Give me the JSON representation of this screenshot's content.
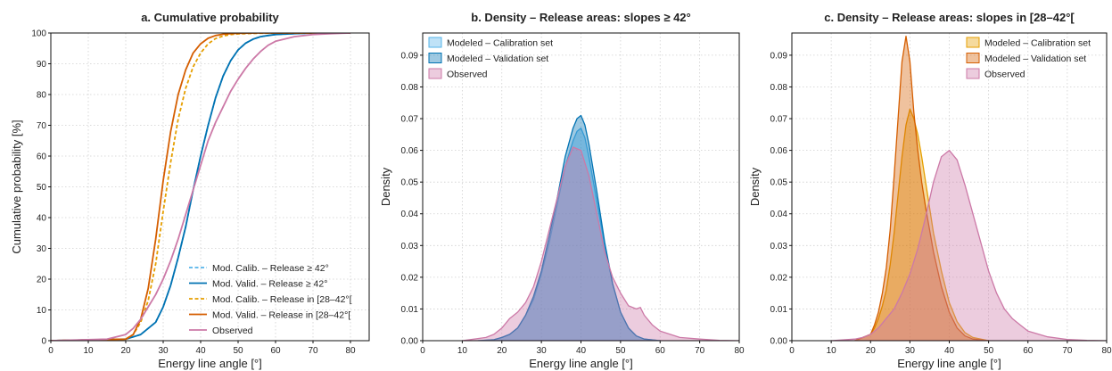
{
  "chart_data": [
    {
      "type": "line",
      "title": "a. Cumulative probability",
      "xlabel": "Energy line angle [°]",
      "ylabel": "Cumulative probability [%]",
      "xlim": [
        0,
        85
      ],
      "ylim": [
        0,
        100
      ],
      "xticks": [
        0,
        10,
        20,
        30,
        40,
        50,
        60,
        70,
        80
      ],
      "yticks": [
        0,
        10,
        20,
        30,
        40,
        50,
        60,
        70,
        80,
        90,
        100
      ],
      "grid": true,
      "legend_position": "bottom-right",
      "series": [
        {
          "name": "Mod. Calib. – Release ≥ 42°",
          "color": "#56b4e9",
          "style": "dashed",
          "x": [
            0,
            20,
            24,
            28,
            30,
            32,
            34,
            36,
            38,
            40,
            42,
            44,
            46,
            48,
            50,
            52,
            54,
            56,
            58,
            60,
            65,
            70,
            80
          ],
          "y": [
            0,
            0.5,
            2,
            6,
            11,
            18,
            27,
            37,
            49,
            60,
            70,
            79,
            86,
            91,
            94.5,
            96.7,
            98,
            98.8,
            99.2,
            99.5,
            99.8,
            100,
            100
          ]
        },
        {
          "name": "Mod. Valid. – Release ≥ 42°",
          "color": "#0072b2",
          "style": "solid",
          "x": [
            0,
            20,
            24,
            28,
            30,
            32,
            34,
            36,
            38,
            40,
            42,
            44,
            46,
            48,
            50,
            52,
            54,
            56,
            58,
            60,
            65,
            70,
            80
          ],
          "y": [
            0,
            0.5,
            2,
            6,
            11,
            18,
            27,
            37,
            49,
            60,
            70,
            79,
            86,
            91,
            94.5,
            96.7,
            98,
            98.8,
            99.2,
            99.5,
            99.8,
            100,
            100
          ]
        },
        {
          "name": "Mod. Calib. – Release in [28–42°[",
          "color": "#e69f00",
          "style": "dashed",
          "x": [
            0,
            20,
            22,
            24,
            26,
            28,
            30,
            32,
            34,
            36,
            38,
            40,
            42,
            44,
            46,
            48,
            50,
            55,
            60,
            70,
            80
          ],
          "y": [
            0,
            0.5,
            2,
            6,
            13,
            25,
            42,
            58,
            72,
            82,
            89,
            93.5,
            96.5,
            98.2,
            99,
            99.5,
            99.7,
            99.9,
            100,
            100,
            100
          ]
        },
        {
          "name": "Mod. Valid. – Release in [28–42°[",
          "color": "#d55e00",
          "style": "solid",
          "x": [
            0,
            20,
            22,
            24,
            26,
            28,
            30,
            32,
            34,
            36,
            38,
            40,
            42,
            44,
            46,
            48,
            50,
            55,
            60,
            70,
            80
          ],
          "y": [
            0,
            0.5,
            2,
            7,
            17,
            33,
            52,
            68,
            80,
            88,
            93.5,
            96.5,
            98.3,
            99.2,
            99.6,
            99.8,
            99.9,
            100,
            100,
            100,
            100
          ]
        },
        {
          "name": "Observed",
          "color": "#cc79a7",
          "style": "solid",
          "x": [
            0,
            15,
            20,
            22,
            24,
            26,
            28,
            30,
            32,
            34,
            36,
            38,
            40,
            42,
            44,
            46,
            48,
            50,
            52,
            54,
            56,
            58,
            60,
            65,
            70,
            75,
            80
          ],
          "y": [
            0,
            0.5,
            2,
            4,
            7,
            11,
            15,
            20,
            26,
            33,
            41,
            49,
            57,
            65,
            71,
            76,
            81,
            85,
            88.5,
            91.5,
            94,
            96,
            97.3,
            98.8,
            99.5,
            99.8,
            100
          ]
        }
      ]
    },
    {
      "type": "area",
      "title": "b. Density – Release areas: slopes ≥ 42°",
      "xlabel": "Energy line angle [°]",
      "ylabel": "Density",
      "xlim": [
        0,
        80
      ],
      "ylim": [
        0,
        0.097
      ],
      "xticks": [
        0,
        10,
        20,
        30,
        40,
        50,
        60,
        70,
        80
      ],
      "yticks": [
        0.0,
        0.01,
        0.02,
        0.03,
        0.04,
        0.05,
        0.06,
        0.07,
        0.08,
        0.09
      ],
      "grid": true,
      "legend_position": "top-left",
      "series": [
        {
          "name": "Modeled – Calibration set",
          "color": "#56b4e9",
          "x": [
            14,
            18,
            20,
            22,
            24,
            26,
            28,
            30,
            32,
            34,
            36,
            38,
            39,
            40,
            41,
            42,
            44,
            46,
            48,
            50,
            52,
            54,
            56,
            60
          ],
          "y": [
            0,
            0.0003,
            0.001,
            0.002,
            0.004,
            0.008,
            0.013,
            0.021,
            0.031,
            0.043,
            0.055,
            0.063,
            0.066,
            0.067,
            0.064,
            0.058,
            0.044,
            0.03,
            0.018,
            0.009,
            0.004,
            0.0015,
            0.0005,
            0
          ]
        },
        {
          "name": "Modeled – Validation set",
          "color": "#0072b2",
          "x": [
            14,
            18,
            20,
            22,
            24,
            26,
            28,
            30,
            32,
            34,
            36,
            38,
            39,
            40,
            41,
            42,
            44,
            46,
            48,
            50,
            52,
            54,
            56,
            60
          ],
          "y": [
            0,
            0.0003,
            0.001,
            0.002,
            0.004,
            0.008,
            0.014,
            0.022,
            0.033,
            0.045,
            0.058,
            0.067,
            0.07,
            0.071,
            0.068,
            0.062,
            0.047,
            0.031,
            0.018,
            0.009,
            0.004,
            0.0015,
            0.0005,
            0
          ]
        },
        {
          "name": "Observed",
          "color": "#cc79a7",
          "x": [
            10,
            16,
            18,
            20,
            22,
            24,
            26,
            28,
            30,
            32,
            34,
            36,
            38,
            40,
            42,
            44,
            46,
            48,
            50,
            52,
            54,
            55,
            56,
            58,
            60,
            65,
            70,
            75,
            80
          ],
          "y": [
            0,
            0.001,
            0.002,
            0.004,
            0.007,
            0.009,
            0.012,
            0.017,
            0.025,
            0.035,
            0.045,
            0.055,
            0.061,
            0.06,
            0.052,
            0.04,
            0.028,
            0.02,
            0.015,
            0.011,
            0.01,
            0.0105,
            0.008,
            0.005,
            0.003,
            0.001,
            0.0005,
            0.0001,
            0
          ]
        }
      ]
    },
    {
      "type": "area",
      "title": "c. Density – Release areas: slopes in [28–42°[",
      "xlabel": "Energy line angle [°]",
      "ylabel": "Density",
      "xlim": [
        0,
        80
      ],
      "ylim": [
        0,
        0.097
      ],
      "xticks": [
        0,
        10,
        20,
        30,
        40,
        50,
        60,
        70,
        80
      ],
      "yticks": [
        0.0,
        0.01,
        0.02,
        0.03,
        0.04,
        0.05,
        0.06,
        0.07,
        0.08,
        0.09
      ],
      "grid": true,
      "legend_position": "top-right",
      "series": [
        {
          "name": "Modeled – Calibration set",
          "color": "#e69f00",
          "x": [
            16,
            20,
            21,
            22,
            23,
            24,
            25,
            26,
            27,
            28,
            29,
            30,
            31,
            32,
            33,
            34,
            35,
            36,
            38,
            40,
            42,
            44,
            46,
            50
          ],
          "y": [
            0,
            0.002,
            0.004,
            0.007,
            0.011,
            0.016,
            0.024,
            0.034,
            0.046,
            0.058,
            0.068,
            0.073,
            0.07,
            0.065,
            0.058,
            0.05,
            0.042,
            0.034,
            0.022,
            0.012,
            0.006,
            0.0025,
            0.001,
            0
          ]
        },
        {
          "name": "Modeled – Validation set",
          "color": "#d55e00",
          "x": [
            16,
            20,
            21,
            22,
            23,
            24,
            25,
            26,
            27,
            28,
            29,
            30,
            31,
            32,
            33,
            34,
            35,
            36,
            38,
            40,
            42,
            44,
            46,
            50
          ],
          "y": [
            0,
            0.002,
            0.005,
            0.009,
            0.015,
            0.023,
            0.035,
            0.052,
            0.07,
            0.088,
            0.096,
            0.088,
            0.072,
            0.06,
            0.05,
            0.042,
            0.035,
            0.028,
            0.017,
            0.009,
            0.004,
            0.0015,
            0.0005,
            0
          ]
        },
        {
          "name": "Observed",
          "color": "#cc79a7",
          "x": [
            10,
            16,
            18,
            20,
            22,
            24,
            26,
            28,
            30,
            32,
            34,
            36,
            38,
            40,
            42,
            44,
            46,
            48,
            50,
            52,
            54,
            56,
            58,
            60,
            65,
            70,
            75,
            80
          ],
          "y": [
            0,
            0.0005,
            0.001,
            0.002,
            0.004,
            0.007,
            0.01,
            0.015,
            0.021,
            0.029,
            0.039,
            0.05,
            0.058,
            0.06,
            0.057,
            0.049,
            0.04,
            0.031,
            0.022,
            0.015,
            0.01,
            0.007,
            0.005,
            0.003,
            0.0012,
            0.0004,
            0.0001,
            0
          ]
        }
      ]
    }
  ]
}
